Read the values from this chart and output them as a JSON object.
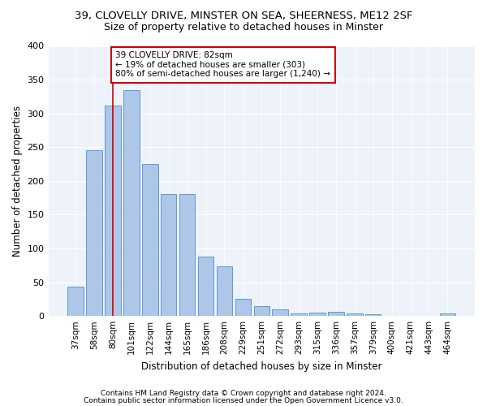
{
  "title1": "39, CLOVELLY DRIVE, MINSTER ON SEA, SHEERNESS, ME12 2SF",
  "title2": "Size of property relative to detached houses in Minster",
  "xlabel": "Distribution of detached houses by size in Minster",
  "ylabel": "Number of detached properties",
  "categories": [
    "37sqm",
    "58sqm",
    "80sqm",
    "101sqm",
    "122sqm",
    "144sqm",
    "165sqm",
    "186sqm",
    "208sqm",
    "229sqm",
    "251sqm",
    "272sqm",
    "293sqm",
    "315sqm",
    "336sqm",
    "357sqm",
    "379sqm",
    "400sqm",
    "421sqm",
    "443sqm",
    "464sqm"
  ],
  "values": [
    43,
    245,
    312,
    335,
    225,
    180,
    180,
    88,
    73,
    25,
    15,
    10,
    4,
    5,
    6,
    4,
    3,
    0,
    0,
    0,
    4
  ],
  "bar_color": "#aec6e8",
  "bar_edge_color": "#5b9bd5",
  "vline_x": 2,
  "vline_color": "#cc0000",
  "annotation_text": "39 CLOVELLY DRIVE: 82sqm\n← 19% of detached houses are smaller (303)\n80% of semi-detached houses are larger (1,240) →",
  "annotation_box_color": "#ffffff",
  "annotation_box_edge": "#cc0000",
  "footer1": "Contains HM Land Registry data © Crown copyright and database right 2024.",
  "footer2": "Contains public sector information licensed under the Open Government Licence v3.0.",
  "ylim": [
    0,
    400
  ],
  "yticks": [
    0,
    50,
    100,
    150,
    200,
    250,
    300,
    350,
    400
  ],
  "bg_color": "#eef2f9",
  "title1_fontsize": 9.5,
  "title2_fontsize": 9
}
